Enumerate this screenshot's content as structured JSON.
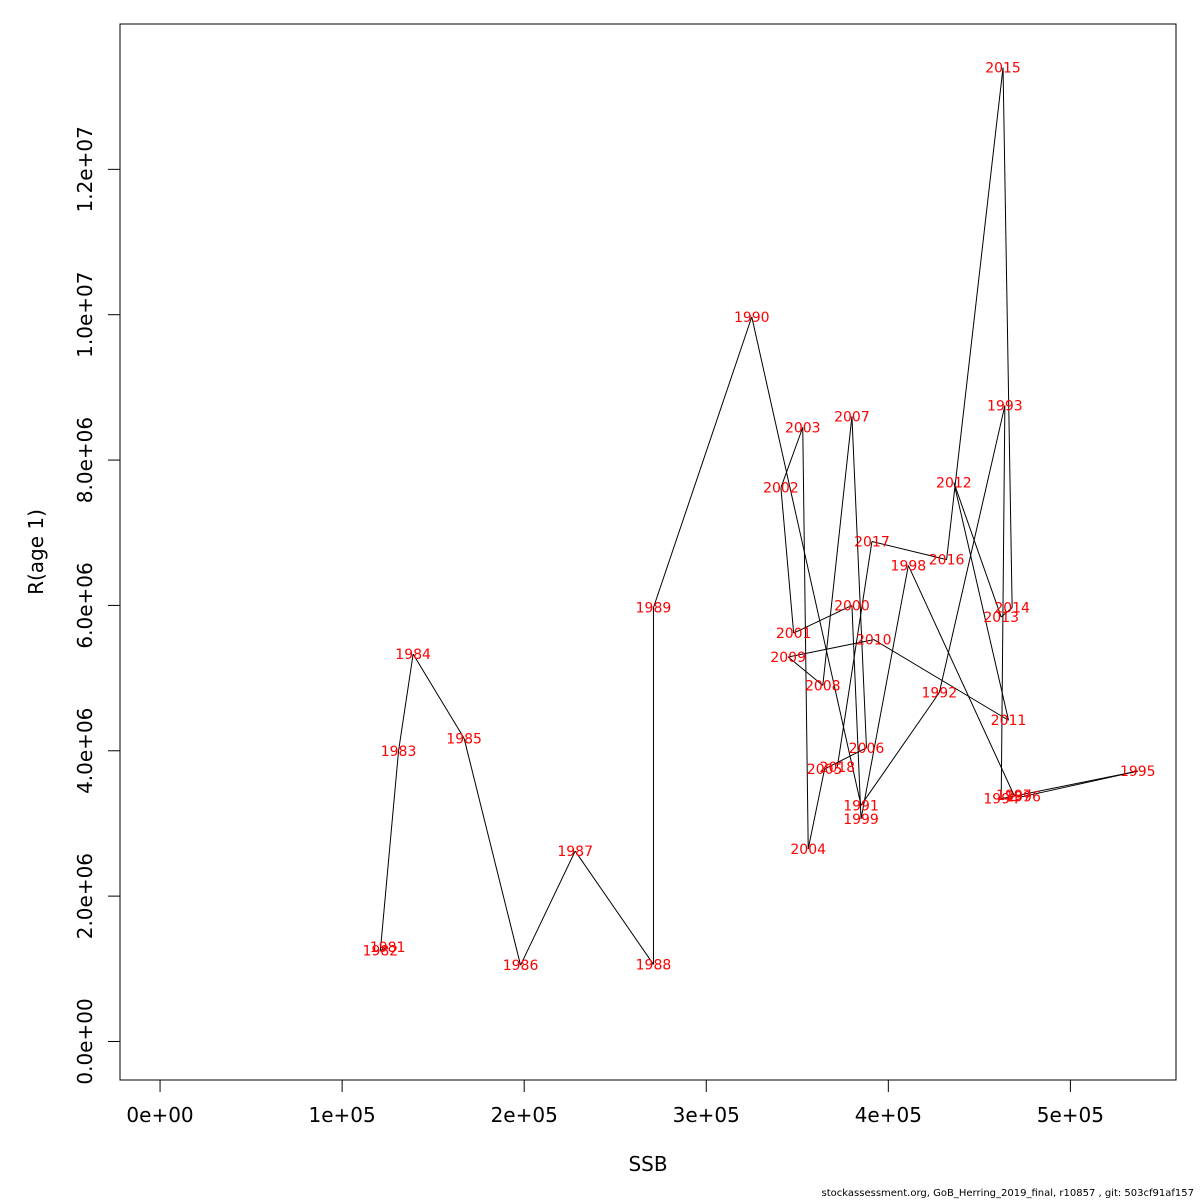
{
  "chart_data": {
    "type": "line",
    "xlabel": "SSB",
    "ylabel": "R(age 1)",
    "xlim": [
      -22000,
      558000
    ],
    "ylim": [
      -530000,
      14000000
    ],
    "x_ticks": [
      {
        "value": 0,
        "label": "0e+00"
      },
      {
        "value": 100000,
        "label": "1e+05"
      },
      {
        "value": 200000,
        "label": "2e+05"
      },
      {
        "value": 300000,
        "label": "3e+05"
      },
      {
        "value": 400000,
        "label": "4e+05"
      },
      {
        "value": 500000,
        "label": "5e+05"
      }
    ],
    "y_ticks": [
      {
        "value": 0,
        "label": "0.0e+00"
      },
      {
        "value": 2000000,
        "label": "2.0e+06"
      },
      {
        "value": 4000000,
        "label": "4.0e+06"
      },
      {
        "value": 6000000,
        "label": "6.0e+06"
      },
      {
        "value": 8000000,
        "label": "8.0e+06"
      },
      {
        "value": 10000000,
        "label": "1.0e+07"
      },
      {
        "value": 12000000,
        "label": "1.2e+07"
      }
    ],
    "points": [
      {
        "year": "1981",
        "x": 125000,
        "y": 1300000
      },
      {
        "year": "1982",
        "x": 121000,
        "y": 1250000
      },
      {
        "year": "1983",
        "x": 131000,
        "y": 4000000
      },
      {
        "year": "1984",
        "x": 139000,
        "y": 5330000
      },
      {
        "year": "1985",
        "x": 167000,
        "y": 4170000
      },
      {
        "year": "1986",
        "x": 198000,
        "y": 1050000
      },
      {
        "year": "1987",
        "x": 228000,
        "y": 2620000
      },
      {
        "year": "1988",
        "x": 271000,
        "y": 1060000
      },
      {
        "year": "1989",
        "x": 271000,
        "y": 5970000
      },
      {
        "year": "1990",
        "x": 325000,
        "y": 9970000
      },
      {
        "year": "1991",
        "x": 385000,
        "y": 3250000
      },
      {
        "year": "1992",
        "x": 428000,
        "y": 4800000
      },
      {
        "year": "1993",
        "x": 464000,
        "y": 8750000
      },
      {
        "year": "1994",
        "x": 462000,
        "y": 3340000
      },
      {
        "year": "1995",
        "x": 537000,
        "y": 3720000
      },
      {
        "year": "1996",
        "x": 474000,
        "y": 3370000
      },
      {
        "year": "1997",
        "x": 469000,
        "y": 3390000
      },
      {
        "year": "1998",
        "x": 411000,
        "y": 6550000
      },
      {
        "year": "1999",
        "x": 385000,
        "y": 3060000
      },
      {
        "year": "2000",
        "x": 380000,
        "y": 6000000
      },
      {
        "year": "2001",
        "x": 348000,
        "y": 5620000
      },
      {
        "year": "2002",
        "x": 341000,
        "y": 7620000
      },
      {
        "year": "2003",
        "x": 353000,
        "y": 8450000
      },
      {
        "year": "2004",
        "x": 356000,
        "y": 2650000
      },
      {
        "year": "2005",
        "x": 365000,
        "y": 3750000
      },
      {
        "year": "2006",
        "x": 388000,
        "y": 4040000
      },
      {
        "year": "2007",
        "x": 380000,
        "y": 8600000
      },
      {
        "year": "2008",
        "x": 364000,
        "y": 4900000
      },
      {
        "year": "2009",
        "x": 345000,
        "y": 5290000
      },
      {
        "year": "2010",
        "x": 392000,
        "y": 5530000
      },
      {
        "year": "2011",
        "x": 466000,
        "y": 4420000
      },
      {
        "year": "2012",
        "x": 436000,
        "y": 7690000
      },
      {
        "year": "2013",
        "x": 462000,
        "y": 5840000
      },
      {
        "year": "2014",
        "x": 468000,
        "y": 5970000
      },
      {
        "year": "2015",
        "x": 463000,
        "y": 13400000
      },
      {
        "year": "2016",
        "x": 432000,
        "y": 6630000
      },
      {
        "year": "2017",
        "x": 391000,
        "y": 6880000
      },
      {
        "year": "2018",
        "x": 372000,
        "y": 3780000
      }
    ],
    "line_color": "#000000",
    "label_color": "#ff0000",
    "grid": false
  },
  "footer": "stockassessment.org, GoB_Herring_2019_final, r10857 , git: 503cf91af157"
}
